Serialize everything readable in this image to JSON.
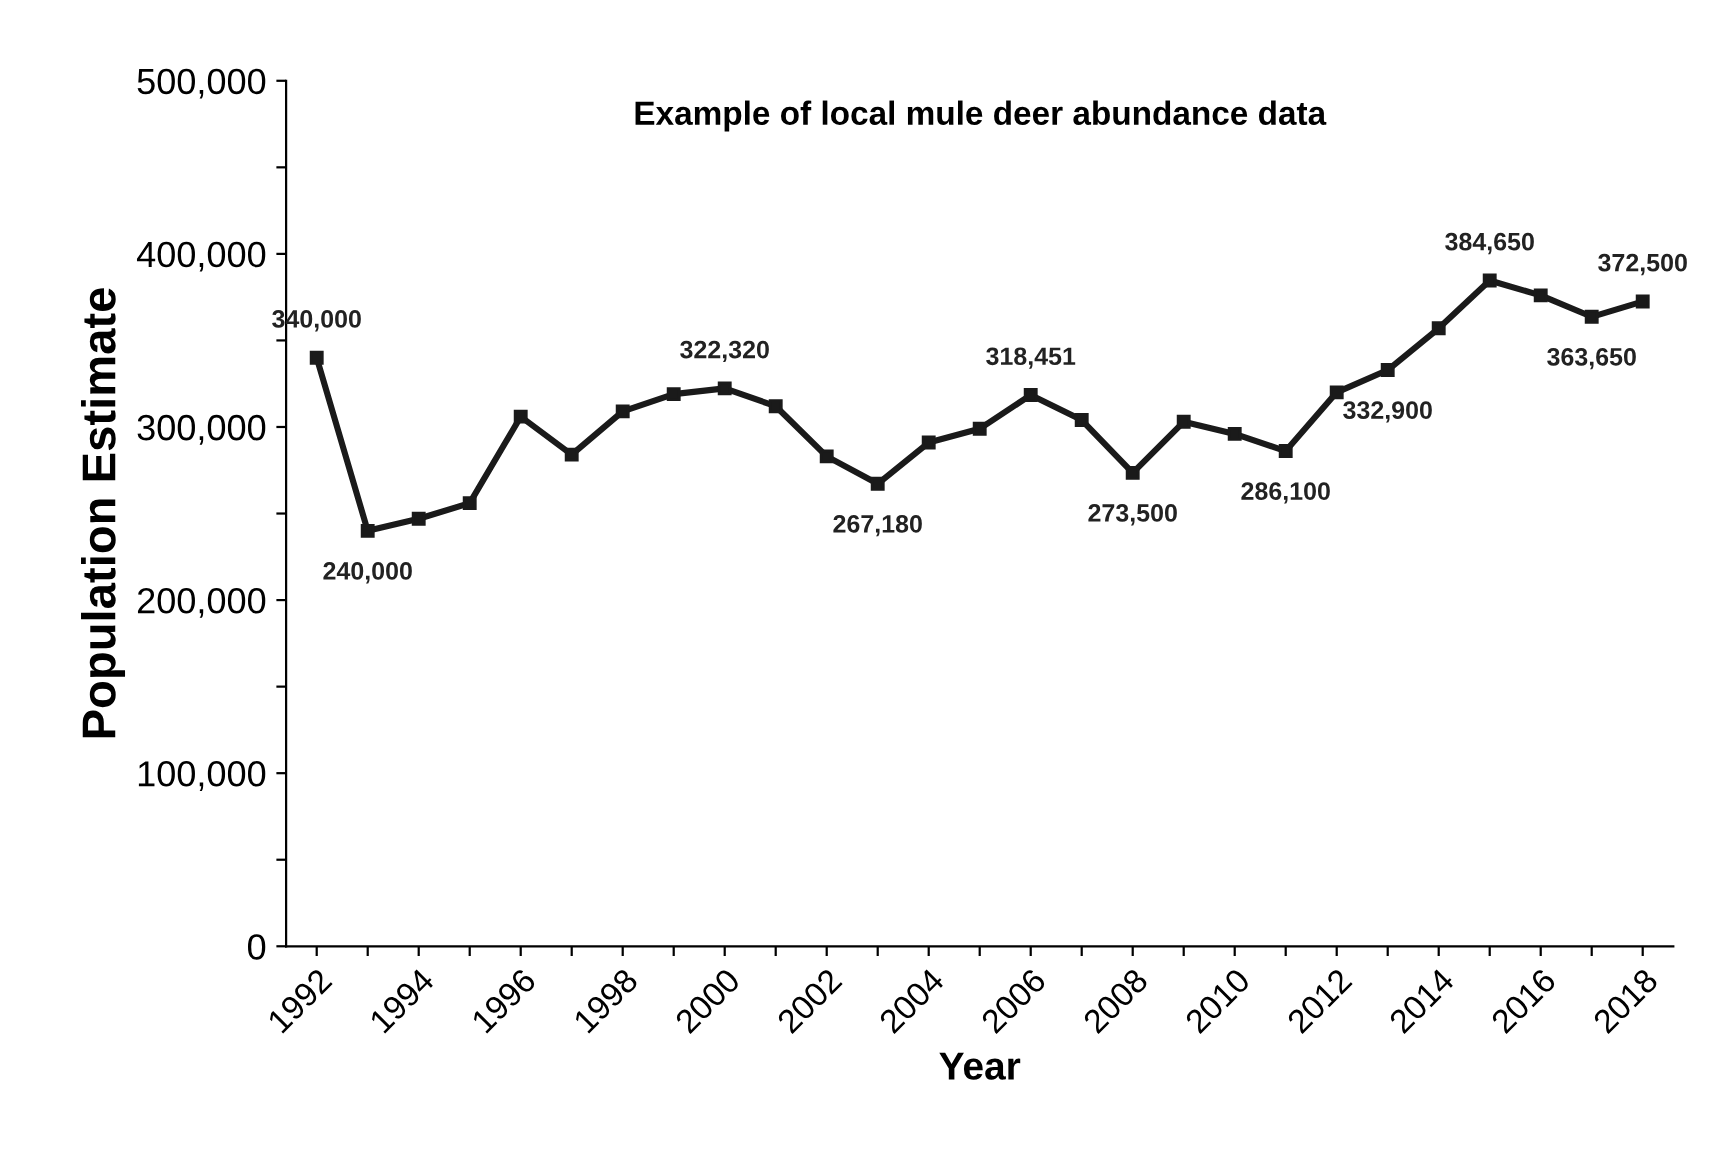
{
  "chart_data": {
    "type": "line",
    "title": "Example of local mule deer abundance data",
    "xlabel": "Year",
    "ylabel": "Population Estimate",
    "categories": [
      "1992",
      null,
      "1994",
      null,
      "1996",
      null,
      "1998",
      null,
      "2000",
      null,
      "2002",
      null,
      "2004",
      null,
      "2006",
      null,
      "2008",
      null,
      "2010",
      null,
      "2012",
      null,
      "2014",
      null,
      "2016",
      null,
      "2018"
    ],
    "series": [
      {
        "color": "#1a1a1a",
        "values": [
          340000,
          240000,
          247000,
          256000,
          306000,
          284000,
          309000,
          319000,
          322320,
          312000,
          283000,
          267180,
          291000,
          299000,
          318451,
          304000,
          273500,
          303000,
          296000,
          286100,
          320000,
          332900,
          357000,
          384650,
          376000,
          363650,
          372500
        ],
        "value_labels": [
          "340,000",
          "240,000",
          null,
          null,
          null,
          null,
          null,
          null,
          "322,320",
          null,
          null,
          "267,180",
          null,
          null,
          "318,451",
          null,
          "273,500",
          null,
          null,
          "286,100",
          null,
          "332,900",
          null,
          "384,650",
          null,
          "363,650",
          "372,500"
        ]
      }
    ],
    "ylim": [
      0,
      500000
    ],
    "yticks": [
      {
        "value": 0,
        "label": "0"
      },
      {
        "value": 50000,
        "label": null
      },
      {
        "value": 100000,
        "label": "100,000"
      },
      {
        "value": 150000,
        "label": null
      },
      {
        "value": 200000,
        "label": "200,000"
      },
      {
        "value": 250000,
        "label": null
      },
      {
        "value": 300000,
        "label": "300,000"
      },
      {
        "value": 350000,
        "label": null
      },
      {
        "value": 400000,
        "label": "400,000"
      },
      {
        "value": 450000,
        "label": null
      },
      {
        "value": 500000,
        "label": "500,000"
      }
    ],
    "marker": "square",
    "line_style": "solid",
    "grid": false,
    "legend": false
  }
}
